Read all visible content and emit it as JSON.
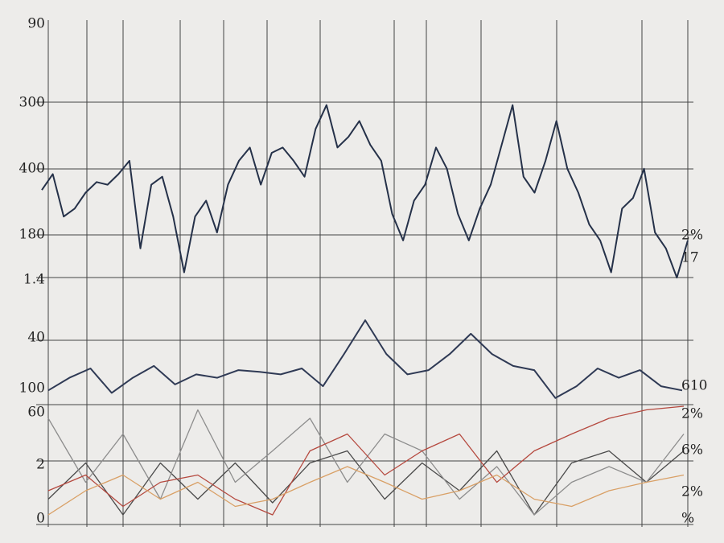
{
  "chart_data": [
    {
      "type": "line",
      "ylim": [
        0,
        100
      ],
      "series": [
        {
          "color": "#253149",
          "values": [
            36,
            42,
            26,
            29,
            35,
            39,
            38,
            42,
            47,
            14,
            38,
            41,
            26,
            5,
            26,
            32,
            20,
            38,
            47,
            52,
            38,
            50,
            52,
            47,
            41,
            59,
            68,
            52,
            56,
            62,
            53,
            47,
            27,
            17,
            32,
            38,
            52,
            44,
            27,
            17,
            29,
            38,
            53,
            68,
            41,
            35,
            47,
            62,
            44,
            35,
            23,
            17,
            5,
            29,
            33,
            44,
            20,
            14,
            3,
            17
          ]
        }
      ]
    },
    {
      "type": "line",
      "ylim": [
        0,
        100
      ],
      "series": [
        {
          "color": "#2f3a55",
          "values": [
            14,
            29,
            40,
            11,
            29,
            43,
            21,
            33,
            29,
            38,
            36,
            33,
            40,
            19,
            57,
            97,
            57,
            33,
            38,
            57,
            81,
            57,
            43,
            38,
            5,
            19,
            40,
            29,
            38,
            19,
            14
          ]
        }
      ]
    },
    {
      "type": "line",
      "ylim": [
        0,
        100
      ],
      "series": [
        {
          "color": "#4a4a4a",
          "values": [
            23,
            53,
            10,
            53,
            23,
            53,
            20,
            53,
            63,
            23,
            53,
            30,
            63,
            10,
            53,
            63,
            37,
            63
          ]
        },
        {
          "color": "#8d8d8d",
          "values": [
            90,
            37,
            77,
            23,
            97,
            37,
            63,
            90,
            37,
            77,
            63,
            23,
            50,
            10,
            37,
            50,
            37,
            77
          ]
        },
        {
          "color": "#b5493f",
          "values": [
            30,
            43,
            17,
            37,
            43,
            23,
            10,
            63,
            77,
            43,
            63,
            77,
            37,
            63,
            77,
            90,
            97,
            100
          ]
        },
        {
          "color": "#d9a066",
          "values": [
            10,
            30,
            43,
            23,
            37,
            17,
            23,
            37,
            50,
            37,
            23,
            30,
            43,
            23,
            17,
            30,
            37,
            43
          ]
        }
      ]
    }
  ],
  "left_labels": [
    "90",
    "300",
    "400",
    "180",
    "1.4",
    "40",
    "100",
    "60",
    "2",
    "0"
  ],
  "right_labels": [
    "2%",
    "17",
    "610",
    "2%",
    "6%",
    "2%",
    "%"
  ]
}
